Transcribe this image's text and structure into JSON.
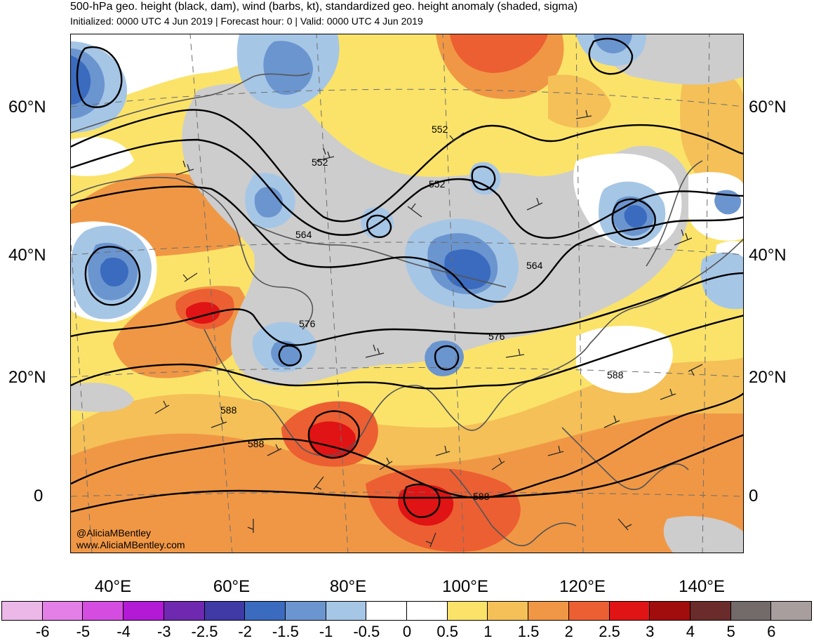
{
  "header": {
    "title": "500-hPa geo. height (black, dam), wind (barbs, kt), standardized geo. height anomaly (shaded, sigma)",
    "subtitle": "Initialized: 0000 UTC 4 Jun 2019 | Forecast hour: 0 | Valid: 0000 UTC 4 Jun 2019"
  },
  "map": {
    "lat_labels_left": [
      "60°N",
      "40°N",
      "20°N",
      "0"
    ],
    "lat_labels_right": [
      "60°N",
      "40°N",
      "20°N",
      "0"
    ],
    "lon_labels": [
      "40°E",
      "60°E",
      "80°E",
      "100°E",
      "120°E",
      "140°E"
    ],
    "contour_labels": [
      "552",
      "552",
      "552",
      "564",
      "564",
      "576",
      "576",
      "588",
      "588",
      "588",
      "588"
    ],
    "credit_handle": "@AliciaMBentley",
    "credit_url": "www.AliciaMBentley.com"
  },
  "colorbar": {
    "labels": [
      "-6",
      "-5",
      "-4",
      "-3",
      "-2.5",
      "-2",
      "-1.5",
      "-1",
      "-0.5",
      "0",
      "0.5",
      "1",
      "1.5",
      "2",
      "2.5",
      "3",
      "4",
      "5",
      "6"
    ],
    "colors": [
      "#ebb8e8",
      "#e47fe7",
      "#d44de0",
      "#b21ad6",
      "#6f29b0",
      "#3f3aa6",
      "#3a6bbf",
      "#6b95cf",
      "#a6c6e6",
      "#ffffff",
      "#ffffff",
      "#fbe36a",
      "#f4c057",
      "#f09745",
      "#ec5f32",
      "#e01414",
      "#a10d0d",
      "#6a2b2b",
      "#736a6a",
      "#a99e9e"
    ]
  }
}
